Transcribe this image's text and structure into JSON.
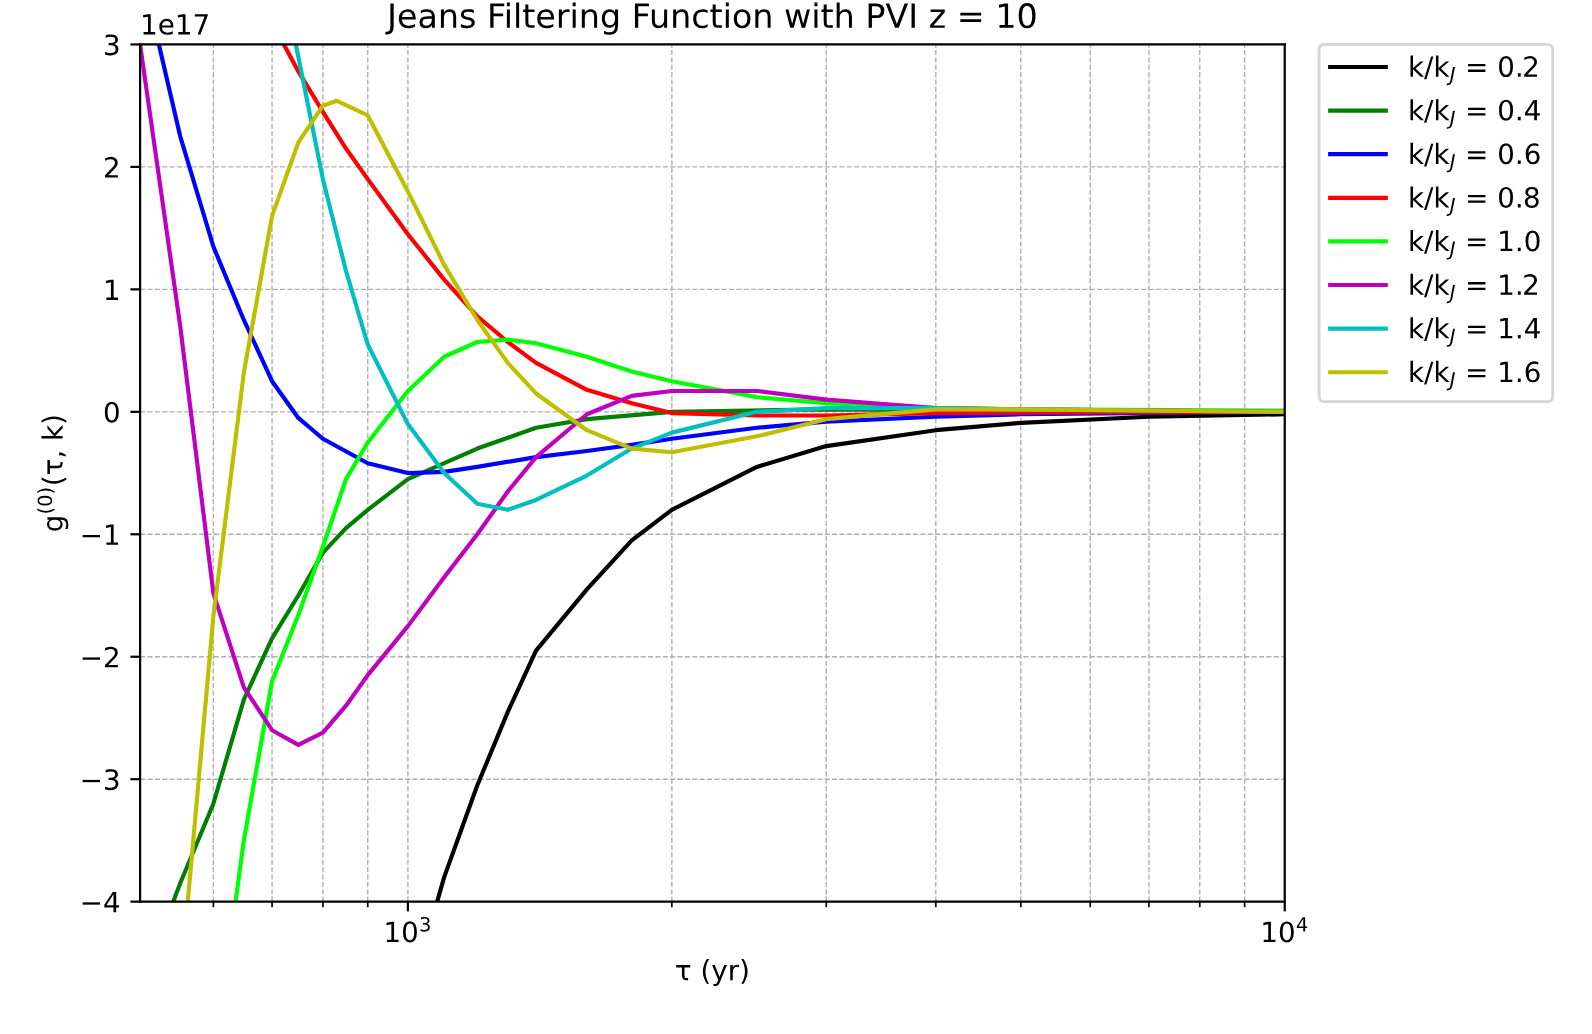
{
  "chart_data": {
    "type": "line",
    "title": "Jeans Filtering Function with PVI z = 10",
    "xlabel": "τ (yr)",
    "ylabel": "g$^{(0)}$(τ, k)",
    "annotations": [
      "1e17"
    ],
    "log": "x",
    "grid": true,
    "legend": "top right",
    "line_style": "solid",
    "xlim": [
      495,
      10000
    ],
    "ylim": [
      -4,
      3
    ],
    "yticks": [
      -4,
      -3,
      -2,
      -1,
      0,
      1,
      2,
      3
    ],
    "xticks": [
      {
        "value": 600,
        "label": null
      },
      {
        "value": 700,
        "label": null
      },
      {
        "value": 800,
        "label": null
      },
      {
        "value": 900,
        "label": null
      },
      {
        "value": 1000,
        "label": "10$^{3}$"
      },
      {
        "value": 2000,
        "label": null
      },
      {
        "value": 3000,
        "label": null
      },
      {
        "value": 4000,
        "label": null
      },
      {
        "value": 5000,
        "label": null
      },
      {
        "value": 6000,
        "label": null
      },
      {
        "value": 7000,
        "label": null
      },
      {
        "value": 8000,
        "label": null
      },
      {
        "value": 9000,
        "label": null
      },
      {
        "value": 10000,
        "label": "10$^{4}$"
      }
    ],
    "series": [
      {
        "name": "k/k$_{J}$ = 0.2",
        "color": "#000000",
        "x": [
          1080,
          1100,
          1200,
          1300,
          1400,
          1600,
          1800,
          2000,
          2500,
          3000,
          4000,
          5000,
          7000,
          10000
        ],
        "values": [
          -4.0,
          -3.8,
          -3.05,
          -2.45,
          -1.95,
          -1.45,
          -1.05,
          -0.8,
          -0.45,
          -0.28,
          -0.15,
          -0.09,
          -0.04,
          -0.02
        ]
      },
      {
        "name": "k/k$_{J}$ = 0.4",
        "color": "#008000",
        "x": [
          540,
          550,
          600,
          650,
          700,
          750,
          800,
          850,
          900,
          1000,
          1200,
          1400,
          1600,
          2000,
          3000,
          5000,
          10000
        ],
        "values": [
          -4.0,
          -3.85,
          -3.2,
          -2.35,
          -1.85,
          -1.5,
          -1.15,
          -0.95,
          -0.8,
          -0.55,
          -0.3,
          -0.13,
          -0.06,
          0.0,
          0.02,
          0.01,
          0.0
        ]
      },
      {
        "name": "k/k$_{J}$ = 0.6",
        "color": "#0000ff",
        "x": [
          520,
          550,
          600,
          650,
          700,
          750,
          800,
          900,
          1000,
          1100,
          1200,
          1400,
          1600,
          1800,
          2000,
          2500,
          3000,
          4000,
          5000,
          10000
        ],
        "values": [
          3.0,
          2.25,
          1.35,
          0.75,
          0.25,
          -0.05,
          -0.22,
          -0.42,
          -0.5,
          -0.49,
          -0.45,
          -0.37,
          -0.32,
          -0.27,
          -0.22,
          -0.13,
          -0.08,
          -0.04,
          -0.02,
          0.0
        ]
      },
      {
        "name": "k/k$_{J}$ = 0.8",
        "color": "#ff0000",
        "x": [
          722,
          750,
          800,
          850,
          900,
          1000,
          1100,
          1200,
          1300,
          1400,
          1600,
          1800,
          2000,
          2500,
          3000,
          4000,
          10000
        ],
        "values": [
          3.0,
          2.78,
          2.45,
          2.15,
          1.9,
          1.45,
          1.08,
          0.78,
          0.57,
          0.4,
          0.18,
          0.07,
          -0.01,
          -0.03,
          -0.03,
          -0.01,
          0.0
        ]
      },
      {
        "name": "k/k$_{J}$ = 1.0",
        "color": "#00ff00",
        "x": [
          636,
          650,
          700,
          750,
          800,
          850,
          900,
          1000,
          1100,
          1200,
          1300,
          1400,
          1600,
          1800,
          2000,
          2500,
          3000,
          4000,
          5000,
          10000
        ],
        "values": [
          -4.0,
          -3.5,
          -2.2,
          -1.66,
          -1.1,
          -0.55,
          -0.25,
          0.17,
          0.45,
          0.57,
          0.59,
          0.56,
          0.45,
          0.33,
          0.25,
          0.12,
          0.07,
          0.03,
          0.02,
          0.01
        ]
      },
      {
        "name": "k/k$_{J}$ = 1.2",
        "color": "#bf00bf",
        "x": [
          495,
          550,
          600,
          650,
          700,
          750,
          800,
          850,
          900,
          1000,
          1100,
          1200,
          1300,
          1400,
          1600,
          1800,
          2000,
          2500,
          3000,
          4000,
          5000,
          10000
        ],
        "values": [
          3.0,
          0.7,
          -1.48,
          -2.25,
          -2.6,
          -2.72,
          -2.62,
          -2.4,
          -2.15,
          -1.75,
          -1.35,
          -1.0,
          -0.65,
          -0.37,
          -0.02,
          0.13,
          0.17,
          0.17,
          0.1,
          0.03,
          0.02,
          0.0
        ]
      },
      {
        "name": "k/k$_{J}$ = 1.4",
        "color": "#00bfbf",
        "x": [
          745,
          750,
          800,
          850,
          900,
          1000,
          1100,
          1200,
          1300,
          1400,
          1600,
          1800,
          2000,
          2500,
          3000,
          4000,
          5000,
          10000
        ],
        "values": [
          3.0,
          2.9,
          1.9,
          1.15,
          0.55,
          -0.1,
          -0.5,
          -0.75,
          -0.8,
          -0.72,
          -0.52,
          -0.3,
          -0.17,
          0.0,
          0.03,
          0.03,
          0.02,
          0.0
        ]
      },
      {
        "name": "k/k$_{J}$ = 1.6",
        "color": "#bfbf00",
        "x": [
          561,
          600,
          650,
          700,
          750,
          800,
          830,
          900,
          1000,
          1100,
          1200,
          1300,
          1400,
          1600,
          1800,
          2000,
          2500,
          3000,
          4000,
          5000,
          10000
        ],
        "values": [
          -4.0,
          -1.67,
          0.32,
          1.6,
          2.2,
          2.5,
          2.54,
          2.42,
          1.8,
          1.2,
          0.75,
          0.4,
          0.15,
          -0.15,
          -0.3,
          -0.33,
          -0.2,
          -0.06,
          0.02,
          0.02,
          0.0
        ]
      }
    ]
  }
}
